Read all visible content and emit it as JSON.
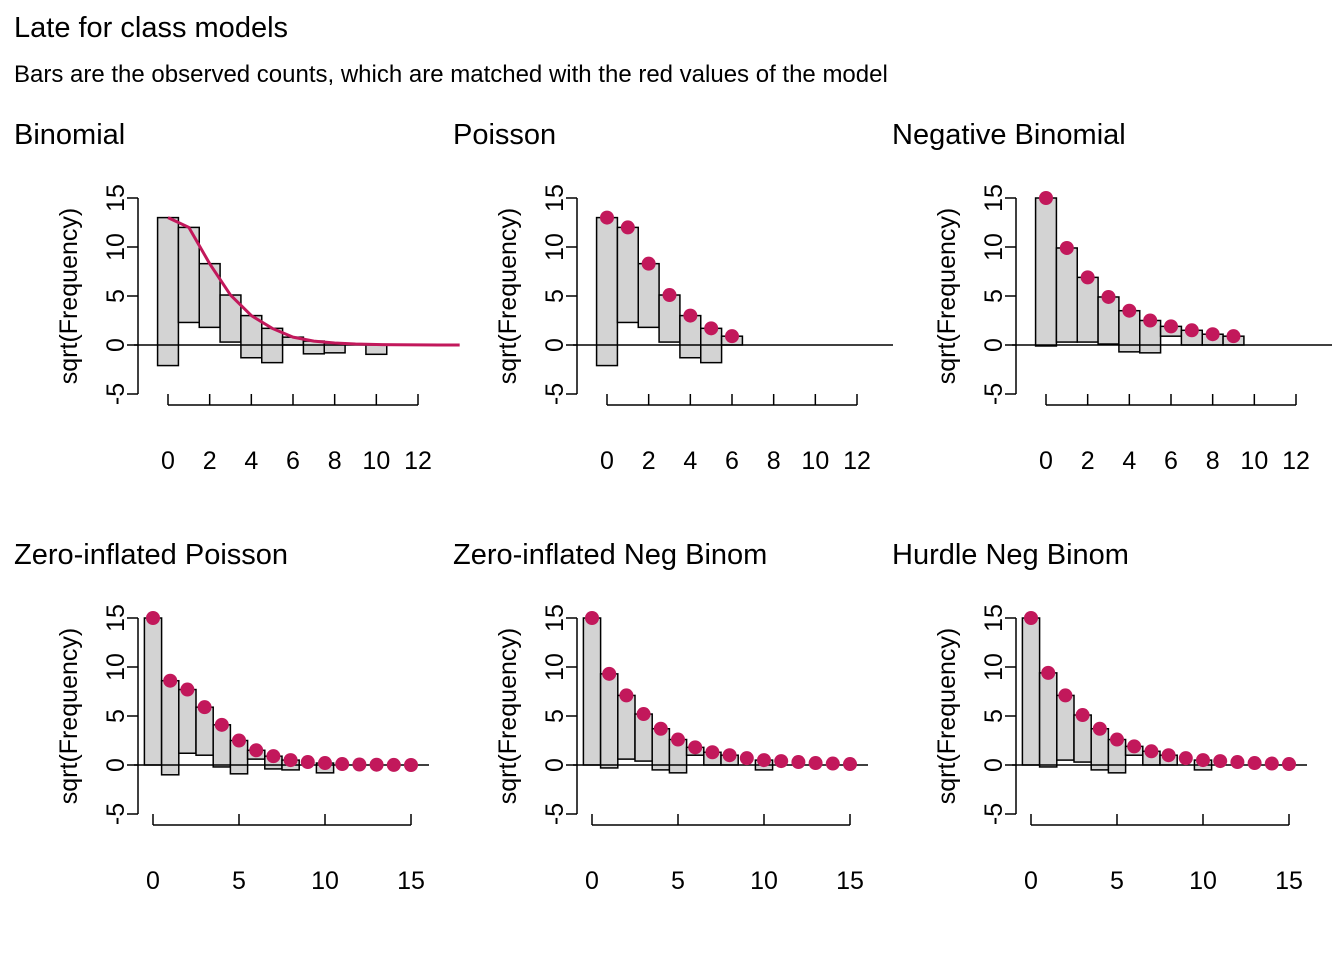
{
  "header": {
    "title": "Late for class models",
    "subtitle": "Bars are the observed counts, which are matched with the red values of the model"
  },
  "colors": {
    "bar_fill": "#d3d3d3",
    "model": "#c2185b",
    "axis": "#000000"
  },
  "chart_data": [
    {
      "type": "bar",
      "title": "Binomial",
      "ylabel": "sqrt(Frequency)",
      "xlabel": "",
      "ylim": [
        -5,
        15
      ],
      "xlim": [
        0,
        12
      ],
      "yticks": [
        -5,
        0,
        5,
        10,
        15
      ],
      "xticks": [
        0,
        2,
        4,
        6,
        8,
        10,
        12
      ],
      "model_style": "line",
      "model_x": [
        0,
        1,
        2,
        3,
        4,
        5,
        6,
        7,
        8,
        9,
        10,
        11,
        12,
        13,
        14
      ],
      "model_y": [
        13.0,
        12.0,
        8.3,
        5.1,
        3.0,
        1.7,
        0.8,
        0.4,
        0.2,
        0.1,
        0.05,
        0.02,
        0.01,
        0.0,
        0.0
      ],
      "bars": [
        {
          "x": 0,
          "top": 13.0,
          "bottom": -2.1
        },
        {
          "x": 1,
          "top": 12.0,
          "bottom": 2.3
        },
        {
          "x": 2,
          "top": 8.3,
          "bottom": 1.8
        },
        {
          "x": 3,
          "top": 5.1,
          "bottom": 0.3
        },
        {
          "x": 4,
          "top": 3.0,
          "bottom": -1.3
        },
        {
          "x": 5,
          "top": 1.7,
          "bottom": -1.8
        },
        {
          "x": 6,
          "top": 0.8,
          "bottom": 0.0
        },
        {
          "x": 7,
          "top": 0.4,
          "bottom": -0.9
        },
        {
          "x": 8,
          "top": 0.2,
          "bottom": -0.8
        },
        {
          "x": 10,
          "top": 0.05,
          "bottom": -0.95
        }
      ]
    },
    {
      "type": "bar",
      "title": "Poisson",
      "ylabel": "sqrt(Frequency)",
      "xlabel": "",
      "ylim": [
        -5,
        15
      ],
      "xlim": [
        0,
        12
      ],
      "yticks": [
        -5,
        0,
        5,
        10,
        15
      ],
      "xticks": [
        0,
        2,
        4,
        6,
        8,
        10,
        12
      ],
      "model_style": "points",
      "model_x": [
        0,
        1,
        2,
        3,
        4,
        5,
        6
      ],
      "model_y": [
        13.0,
        12.0,
        8.3,
        5.1,
        3.0,
        1.7,
        0.9
      ],
      "bars": [
        {
          "x": 0,
          "top": 13.0,
          "bottom": -2.1
        },
        {
          "x": 1,
          "top": 12.0,
          "bottom": 2.3
        },
        {
          "x": 2,
          "top": 8.3,
          "bottom": 1.8
        },
        {
          "x": 3,
          "top": 5.1,
          "bottom": 0.3
        },
        {
          "x": 4,
          "top": 3.0,
          "bottom": -1.3
        },
        {
          "x": 5,
          "top": 1.7,
          "bottom": -1.8
        },
        {
          "x": 6,
          "top": 0.9,
          "bottom": 0.0
        }
      ]
    },
    {
      "type": "bar",
      "title": "Negative Binomial",
      "ylabel": "sqrt(Frequency)",
      "xlabel": "",
      "ylim": [
        -5,
        15
      ],
      "xlim": [
        0,
        12
      ],
      "yticks": [
        -5,
        0,
        5,
        10,
        15
      ],
      "xticks": [
        0,
        2,
        4,
        6,
        8,
        10,
        12
      ],
      "model_style": "points",
      "model_x": [
        0,
        1,
        2,
        3,
        4,
        5,
        6,
        7,
        8,
        9
      ],
      "model_y": [
        15.0,
        9.9,
        6.9,
        4.9,
        3.5,
        2.5,
        1.9,
        1.5,
        1.1,
        0.9
      ],
      "bars": [
        {
          "x": 0,
          "top": 15.0,
          "bottom": -0.1
        },
        {
          "x": 1,
          "top": 9.9,
          "bottom": 0.3
        },
        {
          "x": 2,
          "top": 6.9,
          "bottom": 0.3
        },
        {
          "x": 3,
          "top": 4.9,
          "bottom": 0.1
        },
        {
          "x": 4,
          "top": 3.5,
          "bottom": -0.7
        },
        {
          "x": 5,
          "top": 2.5,
          "bottom": -0.8
        },
        {
          "x": 6,
          "top": 1.9,
          "bottom": 0.9
        },
        {
          "x": 7,
          "top": 1.5,
          "bottom": 0.0
        },
        {
          "x": 8,
          "top": 1.1,
          "bottom": 0.0
        },
        {
          "x": 9,
          "top": 0.9,
          "bottom": 0.0
        }
      ]
    },
    {
      "type": "bar",
      "title": "Zero-inflated Poisson",
      "ylabel": "sqrt(Frequency)",
      "xlabel": "",
      "ylim": [
        -5,
        15
      ],
      "xlim": [
        0,
        15
      ],
      "yticks": [
        -5,
        0,
        5,
        10,
        15
      ],
      "xticks": [
        0,
        5,
        10,
        15
      ],
      "model_style": "points",
      "model_x": [
        0,
        1,
        2,
        3,
        4,
        5,
        6,
        7,
        8,
        9,
        10,
        11,
        12,
        13,
        14,
        15
      ],
      "model_y": [
        15.0,
        8.6,
        7.7,
        5.9,
        4.1,
        2.5,
        1.5,
        0.9,
        0.5,
        0.3,
        0.2,
        0.1,
        0.05,
        0.03,
        0.01,
        0.0
      ],
      "bars": [
        {
          "x": 0,
          "top": 15.0,
          "bottom": 0.0
        },
        {
          "x": 1,
          "top": 8.6,
          "bottom": -1.0
        },
        {
          "x": 2,
          "top": 7.7,
          "bottom": 1.2
        },
        {
          "x": 3,
          "top": 5.9,
          "bottom": 1.0
        },
        {
          "x": 4,
          "top": 4.1,
          "bottom": -0.2
        },
        {
          "x": 5,
          "top": 2.5,
          "bottom": -0.9
        },
        {
          "x": 6,
          "top": 1.5,
          "bottom": 0.6
        },
        {
          "x": 7,
          "top": 0.9,
          "bottom": -0.4
        },
        {
          "x": 8,
          "top": 0.5,
          "bottom": -0.5
        },
        {
          "x": 10,
          "top": 0.2,
          "bottom": -0.8
        }
      ]
    },
    {
      "type": "bar",
      "title": "Zero-inflated Neg Binom",
      "ylabel": "sqrt(Frequency)",
      "xlabel": "",
      "ylim": [
        -5,
        15
      ],
      "xlim": [
        0,
        15
      ],
      "yticks": [
        -5,
        0,
        5,
        10,
        15
      ],
      "xticks": [
        0,
        5,
        10,
        15
      ],
      "model_style": "points",
      "model_x": [
        0,
        1,
        2,
        3,
        4,
        5,
        6,
        7,
        8,
        9,
        10,
        11,
        12,
        13,
        14,
        15
      ],
      "model_y": [
        15.0,
        9.3,
        7.1,
        5.2,
        3.7,
        2.6,
        1.8,
        1.3,
        1.0,
        0.7,
        0.5,
        0.4,
        0.3,
        0.2,
        0.15,
        0.1
      ],
      "bars": [
        {
          "x": 0,
          "top": 15.0,
          "bottom": 0.0
        },
        {
          "x": 1,
          "top": 9.3,
          "bottom": -0.3
        },
        {
          "x": 2,
          "top": 7.1,
          "bottom": 0.6
        },
        {
          "x": 3,
          "top": 5.2,
          "bottom": 0.4
        },
        {
          "x": 4,
          "top": 3.7,
          "bottom": -0.5
        },
        {
          "x": 5,
          "top": 2.6,
          "bottom": -0.8
        },
        {
          "x": 6,
          "top": 1.8,
          "bottom": 1.0
        },
        {
          "x": 7,
          "top": 1.3,
          "bottom": 0.0
        },
        {
          "x": 8,
          "top": 1.0,
          "bottom": 0.0
        },
        {
          "x": 10,
          "top": 0.5,
          "bottom": -0.5
        }
      ]
    },
    {
      "type": "bar",
      "title": "Hurdle Neg Binom",
      "ylabel": "sqrt(Frequency)",
      "xlabel": "",
      "ylim": [
        -5,
        15
      ],
      "xlim": [
        0,
        15
      ],
      "yticks": [
        -5,
        0,
        5,
        10,
        15
      ],
      "xticks": [
        0,
        5,
        10,
        15
      ],
      "model_style": "points",
      "model_x": [
        0,
        1,
        2,
        3,
        4,
        5,
        6,
        7,
        8,
        9,
        10,
        11,
        12,
        13,
        14,
        15
      ],
      "model_y": [
        15.0,
        9.4,
        7.1,
        5.1,
        3.7,
        2.6,
        1.9,
        1.4,
        1.0,
        0.7,
        0.5,
        0.4,
        0.3,
        0.2,
        0.15,
        0.1
      ],
      "bars": [
        {
          "x": 0,
          "top": 15.0,
          "bottom": 0.0
        },
        {
          "x": 1,
          "top": 9.4,
          "bottom": -0.2
        },
        {
          "x": 2,
          "top": 7.1,
          "bottom": 0.5
        },
        {
          "x": 3,
          "top": 5.1,
          "bottom": 0.3
        },
        {
          "x": 4,
          "top": 3.7,
          "bottom": -0.5
        },
        {
          "x": 5,
          "top": 2.6,
          "bottom": -0.8
        },
        {
          "x": 6,
          "top": 1.9,
          "bottom": 1.0
        },
        {
          "x": 7,
          "top": 1.4,
          "bottom": 0.0
        },
        {
          "x": 8,
          "top": 1.0,
          "bottom": 0.0
        },
        {
          "x": 10,
          "top": 0.5,
          "bottom": -0.5
        }
      ]
    }
  ]
}
